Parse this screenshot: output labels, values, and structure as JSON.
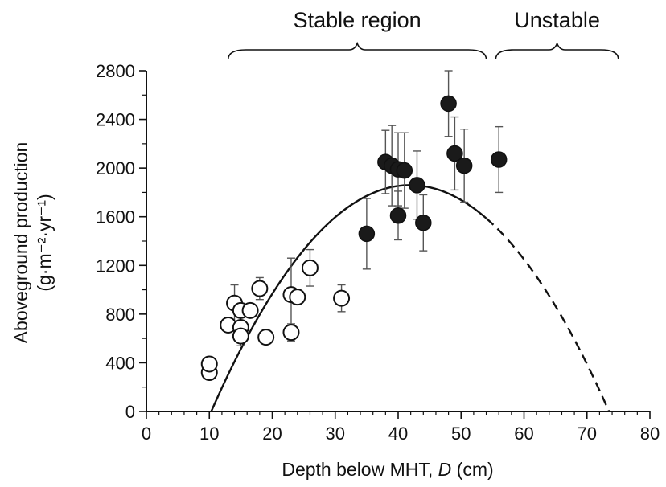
{
  "chart_data": {
    "type": "scatter",
    "title": "",
    "xlabel_prefix": "Depth below MHT, ",
    "xlabel_var": "D",
    "xlabel_suffix": " (cm)",
    "ylabel_line1": "Aboveground production",
    "ylabel_line2": "(g·m⁻²·yr⁻¹)",
    "xlim": [
      0,
      80
    ],
    "ylim": [
      0,
      2800
    ],
    "xticks": [
      0,
      10,
      20,
      30,
      40,
      50,
      60,
      70,
      80
    ],
    "yticks": [
      0,
      400,
      800,
      1200,
      1600,
      2000,
      2400,
      2800
    ],
    "grid": false,
    "regions": [
      {
        "label": "Stable region",
        "x_start": 13,
        "x_end": 54
      },
      {
        "label": "Unstable",
        "x_start": 55.5,
        "x_end": 75
      }
    ],
    "series": [
      {
        "marker": "open-circle",
        "points": [
          {
            "x": 10,
            "y": 320
          },
          {
            "x": 10,
            "y": 390
          },
          {
            "x": 13,
            "y": 710
          },
          {
            "x": 14,
            "y": 890,
            "err": 150
          },
          {
            "x": 15,
            "y": 830
          },
          {
            "x": 15,
            "y": 690,
            "err": 80
          },
          {
            "x": 15,
            "y": 620,
            "err": 80
          },
          {
            "x": 16.5,
            "y": 830
          },
          {
            "x": 18,
            "y": 1010,
            "err": 90
          },
          {
            "x": 19,
            "y": 610
          },
          {
            "x": 23,
            "y": 960,
            "err": 300
          },
          {
            "x": 23,
            "y": 650,
            "err": 70
          },
          {
            "x": 24,
            "y": 940
          },
          {
            "x": 26,
            "y": 1180,
            "err": 150
          },
          {
            "x": 31,
            "y": 930,
            "err": 110
          }
        ]
      },
      {
        "marker": "filled-circle",
        "points": [
          {
            "x": 35,
            "y": 1460,
            "err": 290
          },
          {
            "x": 38,
            "y": 2050,
            "err": 260
          },
          {
            "x": 39,
            "y": 2020,
            "err": 330
          },
          {
            "x": 40,
            "y": 1610,
            "err": 200
          },
          {
            "x": 40,
            "y": 1990,
            "err": 300
          },
          {
            "x": 41,
            "y": 1980,
            "err": 310
          },
          {
            "x": 43,
            "y": 1860,
            "err": 280
          },
          {
            "x": 44,
            "y": 1550,
            "err": 230
          },
          {
            "x": 48,
            "y": 2530,
            "err": 270
          },
          {
            "x": 49,
            "y": 2120,
            "err": 300
          },
          {
            "x": 50.5,
            "y": 2020,
            "err": 300
          },
          {
            "x": 56,
            "y": 2070,
            "err": 270
          }
        ]
      }
    ],
    "fit_curve": {
      "form": "parabola",
      "x_intercepts": [
        10.3,
        73.5
      ],
      "vertex": {
        "x": 41.9,
        "y": 1860
      },
      "solid_until_x": 54,
      "dashed_from_x": 54
    }
  }
}
